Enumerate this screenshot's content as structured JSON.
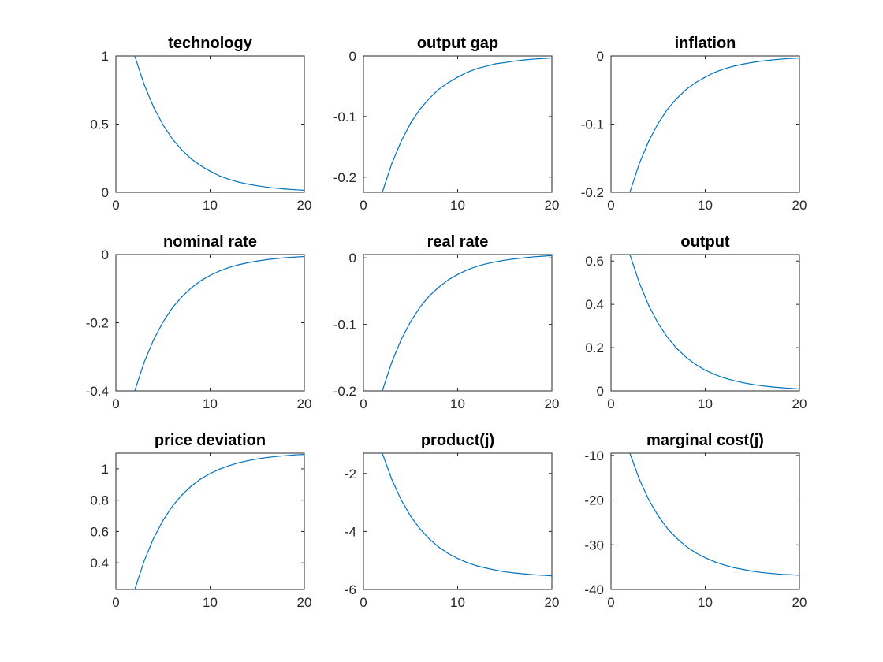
{
  "figure": {
    "background": "#ffffff",
    "line_color": "#0072BD"
  },
  "chart_data": [
    {
      "type": "line",
      "title": "technology",
      "xlim": [
        0,
        20
      ],
      "ylim": [
        0,
        1
      ],
      "xticks": [
        0,
        10,
        20
      ],
      "xtick_labels": [
        "0",
        "10",
        "20"
      ],
      "yticks": [
        0,
        0.5,
        1
      ],
      "ytick_labels": [
        "0",
        "0.5",
        "1"
      ],
      "series": [
        {
          "x": [
            2,
            3,
            4,
            5,
            6,
            7,
            8,
            9,
            10,
            11,
            12,
            13,
            14,
            15,
            16,
            17,
            18,
            19,
            20
          ],
          "values": [
            1.0,
            0.79,
            0.625,
            0.495,
            0.39,
            0.31,
            0.245,
            0.195,
            0.155,
            0.12,
            0.095,
            0.075,
            0.06,
            0.048,
            0.038,
            0.03,
            0.024,
            0.019,
            0.015
          ]
        }
      ]
    },
    {
      "type": "line",
      "title": "output gap",
      "xlim": [
        0,
        20
      ],
      "ylim": [
        -0.225,
        0
      ],
      "xticks": [
        0,
        10,
        20
      ],
      "xtick_labels": [
        "0",
        "10",
        "20"
      ],
      "yticks": [
        -0.2,
        -0.1,
        0
      ],
      "ytick_labels": [
        "-0.2",
        "-0.1",
        "0"
      ],
      "series": [
        {
          "x": [
            2,
            3,
            4,
            5,
            6,
            7,
            8,
            9,
            10,
            11,
            12,
            13,
            14,
            15,
            16,
            17,
            18,
            19,
            20
          ],
          "values": [
            -0.225,
            -0.178,
            -0.141,
            -0.111,
            -0.088,
            -0.07,
            -0.055,
            -0.044,
            -0.035,
            -0.027,
            -0.021,
            -0.017,
            -0.013,
            -0.011,
            -0.0085,
            -0.0067,
            -0.0053,
            -0.0042,
            -0.0033
          ]
        }
      ]
    },
    {
      "type": "line",
      "title": "inflation",
      "xlim": [
        0,
        20
      ],
      "ylim": [
        -0.2,
        0
      ],
      "xticks": [
        0,
        10,
        20
      ],
      "xtick_labels": [
        "0",
        "10",
        "20"
      ],
      "yticks": [
        -0.2,
        -0.1,
        0
      ],
      "ytick_labels": [
        "-0.2",
        "-0.1",
        "0"
      ],
      "series": [
        {
          "x": [
            2,
            3,
            4,
            5,
            6,
            7,
            8,
            9,
            10,
            11,
            12,
            13,
            14,
            15,
            16,
            17,
            18,
            19,
            20
          ],
          "values": [
            -0.2,
            -0.158,
            -0.125,
            -0.099,
            -0.078,
            -0.062,
            -0.049,
            -0.039,
            -0.031,
            -0.024,
            -0.019,
            -0.015,
            -0.012,
            -0.0095,
            -0.0075,
            -0.006,
            -0.0047,
            -0.0037,
            -0.003
          ]
        }
      ]
    },
    {
      "type": "line",
      "title": "nominal rate",
      "xlim": [
        0,
        20
      ],
      "ylim": [
        -0.4,
        0
      ],
      "xticks": [
        0,
        10,
        20
      ],
      "xtick_labels": [
        "0",
        "10",
        "20"
      ],
      "yticks": [
        -0.4,
        -0.2,
        0
      ],
      "ytick_labels": [
        "-0.4",
        "-0.2",
        "0"
      ],
      "series": [
        {
          "x": [
            2,
            3,
            4,
            5,
            6,
            7,
            8,
            9,
            10,
            11,
            12,
            13,
            14,
            15,
            16,
            17,
            18,
            19,
            20
          ],
          "values": [
            -0.4,
            -0.316,
            -0.25,
            -0.198,
            -0.156,
            -0.124,
            -0.098,
            -0.077,
            -0.061,
            -0.048,
            -0.038,
            -0.03,
            -0.024,
            -0.019,
            -0.015,
            -0.012,
            -0.0093,
            -0.0074,
            -0.0058
          ]
        }
      ]
    },
    {
      "type": "line",
      "title": "real rate",
      "xlim": [
        0,
        20
      ],
      "ylim": [
        -0.2,
        0.005
      ],
      "xticks": [
        0,
        10,
        20
      ],
      "xtick_labels": [
        "0",
        "10",
        "20"
      ],
      "yticks": [
        -0.2,
        -0.1,
        0
      ],
      "ytick_labels": [
        "-0.2",
        "-0.1",
        "0"
      ],
      "series": [
        {
          "x": [
            2,
            3,
            4,
            5,
            6,
            7,
            8,
            9,
            10,
            11,
            12,
            13,
            14,
            15,
            16,
            17,
            18,
            19,
            20
          ],
          "values": [
            -0.2,
            -0.157,
            -0.123,
            -0.096,
            -0.074,
            -0.057,
            -0.044,
            -0.033,
            -0.025,
            -0.018,
            -0.013,
            -0.009,
            -0.006,
            -0.0035,
            -0.0015,
            0.0,
            0.0015,
            0.0025,
            0.0035
          ]
        }
      ]
    },
    {
      "type": "line",
      "title": "output",
      "xlim": [
        0,
        20
      ],
      "ylim": [
        0,
        0.63
      ],
      "xticks": [
        0,
        10,
        20
      ],
      "xtick_labels": [
        "0",
        "10",
        "20"
      ],
      "yticks": [
        0,
        0.2,
        0.4,
        0.6
      ],
      "ytick_labels": [
        "0",
        "0.2",
        "0.4",
        "0.6"
      ],
      "series": [
        {
          "x": [
            2,
            3,
            4,
            5,
            6,
            7,
            8,
            9,
            10,
            11,
            12,
            13,
            14,
            15,
            16,
            17,
            18,
            19,
            20
          ],
          "values": [
            0.63,
            0.5,
            0.395,
            0.312,
            0.247,
            0.195,
            0.154,
            0.122,
            0.096,
            0.076,
            0.06,
            0.048,
            0.038,
            0.03,
            0.024,
            0.019,
            0.015,
            0.012,
            0.0094
          ]
        }
      ]
    },
    {
      "type": "line",
      "title": "price deviation",
      "xlim": [
        0,
        20
      ],
      "ylim": [
        0.23,
        1.1
      ],
      "xticks": [
        0,
        10,
        20
      ],
      "xtick_labels": [
        "0",
        "10",
        "20"
      ],
      "yticks": [
        0.4,
        0.6,
        0.8,
        1
      ],
      "ytick_labels": [
        "0.4",
        "0.6",
        "0.8",
        "1"
      ],
      "series": [
        {
          "x": [
            2,
            3,
            4,
            5,
            6,
            7,
            8,
            9,
            10,
            11,
            12,
            13,
            14,
            15,
            16,
            17,
            18,
            19,
            20
          ],
          "values": [
            0.23,
            0.412,
            0.557,
            0.671,
            0.762,
            0.833,
            0.89,
            0.935,
            0.97,
            0.998,
            1.02,
            1.038,
            1.052,
            1.063,
            1.072,
            1.079,
            1.084,
            1.089,
            1.092
          ]
        }
      ]
    },
    {
      "type": "line",
      "title": "product(j)",
      "xlim": [
        0,
        20
      ],
      "ylim": [
        -6,
        -1.3
      ],
      "xticks": [
        0,
        10,
        20
      ],
      "xtick_labels": [
        "0",
        "10",
        "20"
      ],
      "yticks": [
        -6,
        -4,
        -2
      ],
      "ytick_labels": [
        "-6",
        "-4",
        "-2"
      ],
      "series": [
        {
          "x": [
            2,
            3,
            4,
            5,
            6,
            7,
            8,
            9,
            10,
            11,
            12,
            13,
            14,
            15,
            16,
            17,
            18,
            19,
            20
          ],
          "values": [
            -1.3,
            -2.2,
            -2.91,
            -3.47,
            -3.91,
            -4.26,
            -4.54,
            -4.76,
            -4.93,
            -5.07,
            -5.18,
            -5.26,
            -5.33,
            -5.39,
            -5.43,
            -5.46,
            -5.49,
            -5.51,
            -5.53
          ]
        }
      ]
    },
    {
      "type": "line",
      "title": "marginal cost(j)",
      "xlim": [
        0,
        20
      ],
      "ylim": [
        -40,
        -9.5
      ],
      "xticks": [
        0,
        10,
        20
      ],
      "xtick_labels": [
        "0",
        "10",
        "20"
      ],
      "yticks": [
        -40,
        -30,
        -20,
        -10
      ],
      "ytick_labels": [
        "-40",
        "-30",
        "-20",
        "-10"
      ],
      "series": [
        {
          "x": [
            2,
            3,
            4,
            5,
            6,
            7,
            8,
            9,
            10,
            11,
            12,
            13,
            14,
            15,
            16,
            17,
            18,
            19,
            20
          ],
          "values": [
            -9.5,
            -15.3,
            -19.9,
            -23.5,
            -26.4,
            -28.6,
            -30.4,
            -31.8,
            -32.9,
            -33.8,
            -34.5,
            -35.1,
            -35.5,
            -35.9,
            -36.2,
            -36.4,
            -36.6,
            -36.7,
            -36.8
          ]
        }
      ]
    }
  ]
}
